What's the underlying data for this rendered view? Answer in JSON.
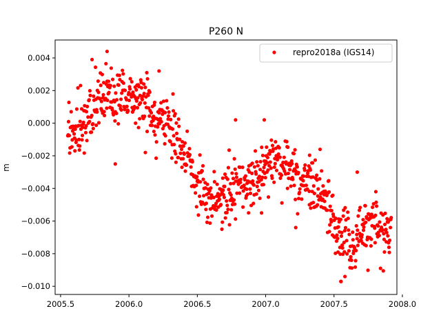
{
  "chart_data": {
    "type": "scatter",
    "title": "P260 N",
    "xlabel": "",
    "ylabel": "m",
    "xlim": [
      2005.46,
      2007.96
    ],
    "ylim": [
      -0.0105,
      0.0051
    ],
    "xticks": [
      2005.5,
      2006.0,
      2006.5,
      2007.0,
      2007.5,
      2008.0
    ],
    "xtick_labels": [
      "2005.5",
      "2006.0",
      "2006.5",
      "2007.0",
      "2007.5",
      "2008.0"
    ],
    "yticks": [
      0.004,
      0.002,
      0.0,
      -0.002,
      -0.004,
      -0.006,
      -0.008,
      -0.01
    ],
    "ytick_labels": [
      "0.004",
      "0.002",
      "0.000",
      "−0.002",
      "−0.004",
      "−0.006",
      "−0.008",
      "−0.010"
    ],
    "grid": false,
    "legend_position": "top-right",
    "series": [
      {
        "name": "repro2018a (IGS14)",
        "color": "#ff0000",
        "marker": "circle",
        "trend": {
          "x": [
            2005.55,
            2005.65,
            2005.75,
            2005.85,
            2005.95,
            2006.05,
            2006.15,
            2006.25,
            2006.35,
            2006.45,
            2006.55,
            2006.65,
            2006.75,
            2006.85,
            2006.95,
            2007.05,
            2007.15,
            2007.25,
            2007.35,
            2007.45,
            2007.55,
            2007.65,
            2007.75,
            2007.85,
            2007.92
          ],
          "y": [
            -0.0008,
            0.0,
            0.001,
            0.0017,
            0.0016,
            0.0015,
            0.001,
            0.0002,
            -0.0008,
            -0.0028,
            -0.0045,
            -0.0047,
            -0.004,
            -0.0035,
            -0.0032,
            -0.002,
            -0.0025,
            -0.0035,
            -0.0038,
            -0.005,
            -0.007,
            -0.0073,
            -0.0062,
            -0.0065,
            -0.0068
          ]
        },
        "outliers": [
          {
            "x": 2005.84,
            "y": 0.0044
          },
          {
            "x": 2005.73,
            "y": 0.0039
          },
          {
            "x": 2006.22,
            "y": 0.0032
          },
          {
            "x": 2006.78,
            "y": 0.0002
          },
          {
            "x": 2006.99,
            "y": 0.0002
          },
          {
            "x": 2007.67,
            "y": -0.003
          },
          {
            "x": 2007.55,
            "y": -0.0097
          },
          {
            "x": 2007.58,
            "y": -0.0094
          },
          {
            "x": 2007.84,
            "y": -0.0089
          },
          {
            "x": 2005.9,
            "y": -0.0025
          },
          {
            "x": 2006.68,
            "y": -0.0065
          },
          {
            "x": 2006.12,
            "y": -0.0018
          },
          {
            "x": 2006.97,
            "y": -0.0055
          },
          {
            "x": 2007.22,
            "y": -0.0064
          },
          {
            "x": 2007.32,
            "y": -0.005
          }
        ]
      }
    ]
  }
}
